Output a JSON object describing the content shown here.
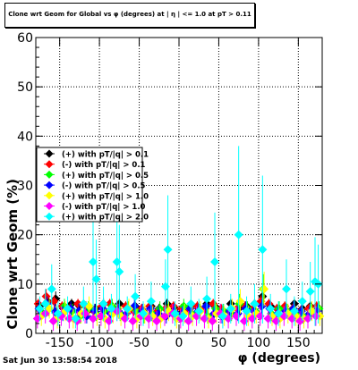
{
  "chart_data": {
    "type": "scatter",
    "title": "Clone wrt Geom for Global vs φ (degrees) at | η | <= 1.0 at pT > 0.11",
    "xlabel": "φ (degrees)",
    "ylabel": "Clone wrt  Geom (%)",
    "xlim": [
      -180,
      180
    ],
    "ylim": [
      0,
      60
    ],
    "x_ticks": [
      -150,
      -100,
      -50,
      0,
      50,
      100,
      150
    ],
    "y_ticks": [
      0,
      10,
      20,
      30,
      40,
      50,
      60
    ],
    "grid": true,
    "legend_position": "middle-left",
    "series": [
      {
        "name": "(+) with pT/|q| > 0.1",
        "color": "#000000",
        "x": [
          -175,
          -165,
          -155,
          -145,
          -135,
          -125,
          -115,
          -105,
          -95,
          -85,
          -75,
          -65,
          -55,
          -45,
          -35,
          -25,
          -15,
          -5,
          5,
          15,
          25,
          35,
          45,
          55,
          65,
          75,
          85,
          95,
          105,
          115,
          125,
          135,
          145,
          155,
          165,
          175
        ],
        "y": [
          5.5,
          6.5,
          7.0,
          5.0,
          6.0,
          5.5,
          4.5,
          5.0,
          6.0,
          5.0,
          6.0,
          5.0,
          5.5,
          4.5,
          5.5,
          5.0,
          6.0,
          5.0,
          4.5,
          5.5,
          5.0,
          6.0,
          5.5,
          4.5,
          6.0,
          5.0,
          5.5,
          6.0,
          7.5,
          5.5,
          5.0,
          4.5,
          6.0,
          5.0,
          5.5,
          5.0
        ],
        "err": [
          1.0,
          1.2,
          1.5,
          1.0,
          1.0,
          1.0,
          1.0,
          1.0,
          1.2,
          1.0,
          1.0,
          1.0,
          1.0,
          1.0,
          1.0,
          1.0,
          1.0,
          1.0,
          1.0,
          1.0,
          1.0,
          1.0,
          1.0,
          1.0,
          1.0,
          1.0,
          1.0,
          1.0,
          1.5,
          1.0,
          1.0,
          1.0,
          1.0,
          1.0,
          1.0,
          1.0
        ]
      },
      {
        "name": "(-) with pT/|q| > 0.1",
        "color": "#ff0000",
        "x": [
          -177,
          -167,
          -157,
          -147,
          -137,
          -127,
          -117,
          -107,
          -97,
          -87,
          -77,
          -67,
          -57,
          -47,
          -37,
          -27,
          -17,
          -7,
          3,
          13,
          23,
          33,
          43,
          53,
          63,
          73,
          83,
          93,
          103,
          113,
          123,
          133,
          143,
          153,
          163,
          173
        ],
        "y": [
          6.0,
          7.5,
          6.5,
          5.5,
          5.0,
          6.0,
          5.5,
          4.5,
          5.5,
          6.0,
          5.0,
          5.5,
          4.5,
          5.0,
          5.5,
          4.5,
          5.0,
          5.5,
          5.0,
          4.5,
          5.5,
          5.0,
          6.0,
          5.0,
          4.5,
          5.0,
          5.5,
          5.0,
          6.5,
          6.0,
          5.0,
          5.5,
          5.0,
          4.5,
          5.0,
          5.5
        ],
        "err": [
          1.0,
          1.5,
          1.2,
          1.0,
          1.0,
          1.0,
          1.0,
          1.0,
          1.0,
          1.0,
          1.0,
          1.0,
          1.0,
          1.0,
          1.0,
          1.0,
          1.0,
          1.0,
          1.0,
          1.0,
          1.0,
          1.0,
          1.0,
          1.0,
          1.0,
          1.0,
          1.0,
          1.0,
          1.2,
          1.0,
          1.0,
          1.0,
          1.0,
          1.0,
          1.0,
          1.0
        ]
      },
      {
        "name": "(+) with pT/|q| > 0.5",
        "color": "#00ff00",
        "x": [
          -174,
          -164,
          -154,
          -144,
          -134,
          -124,
          -114,
          -104,
          -94,
          -84,
          -74,
          -64,
          -54,
          -44,
          -34,
          -24,
          -14,
          -4,
          6,
          16,
          26,
          36,
          46,
          56,
          66,
          76,
          86,
          96,
          106,
          116,
          126,
          136,
          146,
          156,
          166,
          176
        ],
        "y": [
          4.5,
          5.0,
          4.0,
          5.5,
          4.5,
          3.5,
          5.0,
          4.0,
          4.5,
          5.5,
          4.0,
          5.0,
          4.5,
          3.5,
          4.0,
          5.0,
          4.5,
          4.0,
          5.5,
          4.0,
          4.5,
          3.5,
          5.0,
          4.5,
          4.0,
          6.0,
          5.0,
          4.5,
          9.0,
          4.0,
          5.0,
          4.5,
          4.0,
          3.5,
          4.5,
          5.0
        ],
        "err": [
          1.5,
          1.5,
          1.5,
          1.5,
          1.5,
          1.5,
          1.5,
          1.5,
          1.5,
          1.5,
          1.5,
          1.5,
          1.5,
          1.5,
          1.5,
          1.5,
          1.5,
          1.5,
          1.5,
          1.5,
          1.5,
          1.5,
          1.5,
          1.5,
          1.5,
          2.0,
          1.5,
          1.5,
          3.0,
          1.5,
          1.5,
          1.5,
          1.5,
          1.5,
          1.5,
          1.5
        ]
      },
      {
        "name": "(-) with pT/|q| > 0.5",
        "color": "#0000ff",
        "x": [
          -176,
          -166,
          -156,
          -146,
          -136,
          -126,
          -116,
          -106,
          -96,
          -86,
          -76,
          -66,
          -56,
          -46,
          -36,
          -26,
          -16,
          -6,
          4,
          14,
          24,
          34,
          44,
          54,
          64,
          74,
          84,
          94,
          104,
          114,
          124,
          134,
          144,
          154,
          164,
          174
        ],
        "y": [
          5.0,
          6.0,
          4.5,
          4.0,
          5.0,
          4.5,
          3.5,
          4.5,
          5.0,
          4.0,
          4.5,
          4.0,
          5.5,
          4.5,
          5.0,
          4.0,
          3.5,
          4.5,
          4.0,
          5.0,
          4.5,
          5.5,
          4.0,
          3.5,
          4.5,
          4.0,
          5.0,
          4.5,
          5.5,
          5.0,
          4.0,
          4.5,
          5.0,
          4.5,
          4.0,
          4.5
        ],
        "err": [
          1.5,
          1.5,
          1.5,
          1.5,
          1.5,
          1.5,
          1.5,
          1.5,
          1.5,
          1.5,
          1.5,
          1.5,
          1.5,
          1.5,
          1.5,
          1.5,
          1.5,
          1.5,
          1.5,
          1.5,
          1.5,
          1.5,
          1.5,
          1.5,
          1.5,
          1.5,
          1.5,
          1.5,
          1.5,
          1.5,
          1.5,
          1.5,
          1.5,
          1.5,
          1.5,
          1.5
        ]
      },
      {
        "name": "(+) with pT/|q| > 1.0",
        "color": "#ffff00",
        "x": [
          -173,
          -163,
          -153,
          -143,
          -133,
          -123,
          -113,
          -103,
          -93,
          -83,
          -73,
          -63,
          -53,
          -43,
          -33,
          -23,
          -13,
          -3,
          7,
          17,
          27,
          37,
          47,
          57,
          67,
          77,
          87,
          97,
          107,
          117,
          127,
          137,
          147,
          157,
          167,
          177
        ],
        "y": [
          3.5,
          5.0,
          3.0,
          4.5,
          3.0,
          4.0,
          5.5,
          3.5,
          3.0,
          4.0,
          3.5,
          5.0,
          3.0,
          4.0,
          3.5,
          3.0,
          4.5,
          3.0,
          4.0,
          3.5,
          4.5,
          3.0,
          4.0,
          3.5,
          5.0,
          6.5,
          3.5,
          4.0,
          9.0,
          3.5,
          3.0,
          4.0,
          3.5,
          3.0,
          4.5,
          3.5
        ],
        "err": [
          2.0,
          2.0,
          2.0,
          2.0,
          2.0,
          2.0,
          2.0,
          2.0,
          2.0,
          2.0,
          2.0,
          2.0,
          2.0,
          2.0,
          2.0,
          2.0,
          2.0,
          2.0,
          2.0,
          2.0,
          2.0,
          2.0,
          2.0,
          2.0,
          2.0,
          2.5,
          2.0,
          2.0,
          3.5,
          2.0,
          2.0,
          2.0,
          2.0,
          2.0,
          2.0,
          2.0
        ]
      },
      {
        "name": "(-) with pT/|q| > 1.0",
        "color": "#ff00ff",
        "x": [
          -178,
          -168,
          -158,
          -148,
          -138,
          -128,
          -118,
          -108,
          -98,
          -88,
          -78,
          -68,
          -58,
          -48,
          -38,
          -28,
          -18,
          -8,
          2,
          12,
          22,
          32,
          42,
          52,
          62,
          72,
          82,
          92,
          102,
          112,
          122,
          132,
          142,
          152,
          162,
          172
        ],
        "y": [
          3.0,
          4.0,
          2.5,
          3.5,
          3.0,
          2.5,
          4.0,
          3.0,
          3.5,
          2.5,
          4.5,
          3.0,
          2.5,
          3.5,
          3.0,
          2.5,
          3.5,
          4.0,
          3.0,
          2.5,
          3.5,
          3.0,
          2.5,
          4.0,
          3.0,
          3.5,
          2.5,
          3.0,
          3.5,
          3.0,
          2.5,
          3.5,
          3.0,
          2.5,
          3.0,
          3.5
        ],
        "err": [
          2.0,
          2.0,
          2.0,
          2.0,
          2.0,
          2.0,
          2.0,
          2.0,
          2.0,
          2.0,
          2.0,
          2.0,
          2.0,
          2.0,
          2.0,
          2.0,
          2.0,
          2.0,
          2.0,
          2.0,
          2.0,
          2.0,
          2.0,
          2.0,
          2.0,
          2.0,
          2.0,
          2.0,
          2.0,
          2.0,
          2.0,
          2.0,
          2.0,
          2.0,
          2.0,
          2.0
        ]
      },
      {
        "name": "(+) with pT/|q| > 2.0",
        "color": "#00ffff",
        "x": [
          -175,
          -168,
          -160,
          -152,
          -140,
          -130,
          -120,
          -108,
          -104,
          -95,
          -85,
          -78,
          -75,
          -65,
          -55,
          -45,
          -35,
          -17,
          -14,
          -5,
          5,
          15,
          25,
          35,
          45,
          55,
          65,
          75,
          85,
          95,
          105,
          115,
          125,
          135,
          145,
          155,
          165,
          171,
          175
        ],
        "y": [
          5.0,
          6.0,
          9.0,
          4.0,
          5.0,
          3.0,
          6.0,
          14.5,
          11.0,
          6.0,
          5.0,
          14.5,
          12.5,
          5.0,
          7.5,
          4.0,
          6.5,
          9.5,
          17.0,
          4.0,
          3.5,
          6.0,
          4.5,
          7.0,
          14.5,
          3.5,
          5.0,
          20.0,
          4.5,
          6.0,
          17.0,
          5.0,
          4.0,
          9.0,
          4.5,
          6.5,
          8.5,
          10.5,
          10.0
        ],
        "err": [
          2.5,
          3.0,
          5.0,
          2.5,
          2.5,
          2.0,
          3.5,
          10.0,
          8.0,
          3.5,
          3.0,
          12.0,
          9.5,
          2.5,
          4.5,
          2.5,
          4.0,
          5.5,
          11.0,
          2.5,
          2.0,
          3.5,
          2.5,
          4.5,
          10.0,
          2.5,
          3.0,
          18.0,
          3.0,
          4.0,
          15.0,
          3.0,
          2.5,
          6.0,
          3.0,
          4.0,
          6.0,
          9.0,
          8.0
        ]
      }
    ],
    "footer": "Sat Jun 30 13:58:54 2018"
  }
}
